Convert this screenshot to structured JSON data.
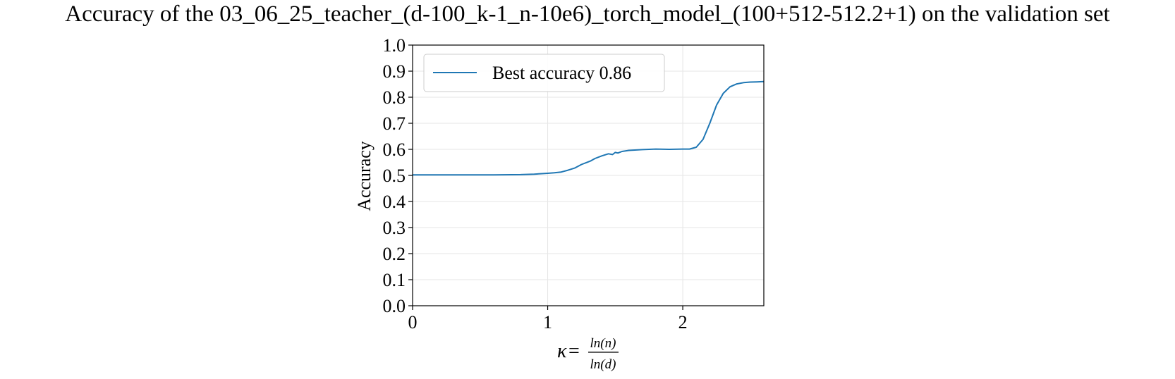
{
  "chart_data": {
    "type": "line",
    "title": "Accuracy of the 03_06_25_teacher_(d-100_k-1_n-10e6)_torch_model_(100+512-512.2+1) on the validation set",
    "xlabel": {
      "symbol": "κ",
      "equals": "=",
      "numerator": "ln(n)",
      "denominator": "ln(d)"
    },
    "ylabel": "Accuracy",
    "xlim": [
      0,
      2.6
    ],
    "ylim": [
      0,
      1.0
    ],
    "x_ticks": [
      "0",
      "1",
      "2"
    ],
    "y_ticks": [
      "0.0",
      "0.1",
      "0.2",
      "0.3",
      "0.4",
      "0.5",
      "0.6",
      "0.7",
      "0.8",
      "0.9",
      "1.0"
    ],
    "grid": true,
    "legend_position": "upper-left",
    "series": [
      {
        "name": "Best accuracy 0.86",
        "color": "#1f77b4",
        "x": [
          0,
          0.2,
          0.4,
          0.6,
          0.8,
          0.9,
          1.0,
          1.05,
          1.1,
          1.15,
          1.2,
          1.25,
          1.3,
          1.32,
          1.35,
          1.4,
          1.45,
          1.48,
          1.5,
          1.52,
          1.55,
          1.6,
          1.7,
          1.8,
          1.9,
          2.0,
          2.05,
          2.1,
          2.15,
          2.2,
          2.25,
          2.3,
          2.35,
          2.4,
          2.45,
          2.5,
          2.55,
          2.6
        ],
        "y": [
          0.502,
          0.502,
          0.502,
          0.502,
          0.503,
          0.505,
          0.508,
          0.51,
          0.513,
          0.52,
          0.528,
          0.542,
          0.552,
          0.556,
          0.565,
          0.575,
          0.583,
          0.58,
          0.588,
          0.586,
          0.592,
          0.596,
          0.599,
          0.601,
          0.6,
          0.601,
          0.601,
          0.608,
          0.638,
          0.7,
          0.77,
          0.815,
          0.84,
          0.851,
          0.856,
          0.858,
          0.859,
          0.86
        ]
      }
    ]
  }
}
